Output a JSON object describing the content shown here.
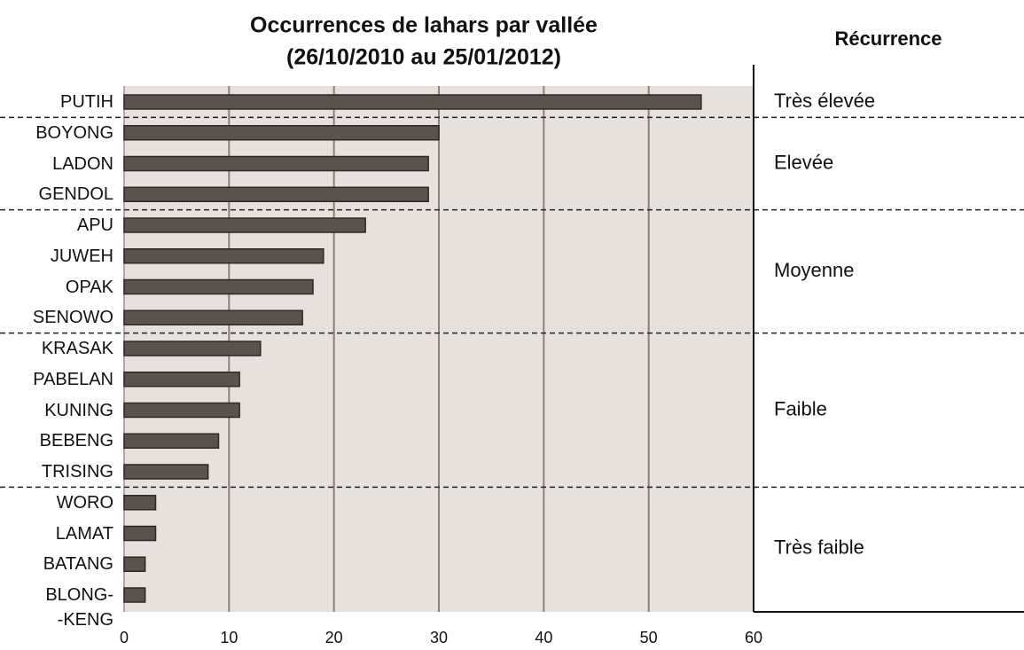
{
  "chart_data": {
    "type": "bar",
    "orientation": "horizontal",
    "title": "Occurrences de lahars par vallée",
    "subtitle": "(26/10/2010 au 25/01/2012)",
    "categories": [
      "PUTIH",
      "BOYONG",
      "LADON",
      "GENDOL",
      "APU",
      "JUWEH",
      "OPAK",
      "SENOWO",
      "KRASAK",
      "PABELAN",
      "KUNING",
      "BEBENG",
      "TRISING",
      "WORO",
      "LAMAT",
      "BATANG",
      "BLONG-\n-KENG"
    ],
    "values": [
      55,
      30,
      29,
      29,
      23,
      19,
      18,
      17,
      13,
      11,
      11,
      9,
      8,
      3,
      3,
      2,
      2
    ],
    "color": "#5b524e",
    "xlim": [
      0,
      60
    ],
    "xticks": [
      0,
      10,
      20,
      30,
      40,
      50,
      60
    ],
    "grid": true,
    "recurrence_title": "Récurrence",
    "recurrence_groups": [
      {
        "label": "Très élevée",
        "size": 1
      },
      {
        "label": "Elevée",
        "size": 3
      },
      {
        "label": "Moyenne",
        "size": 4
      },
      {
        "label": "Faible",
        "size": 5
      },
      {
        "label": "Très faible",
        "size": 4
      }
    ]
  }
}
